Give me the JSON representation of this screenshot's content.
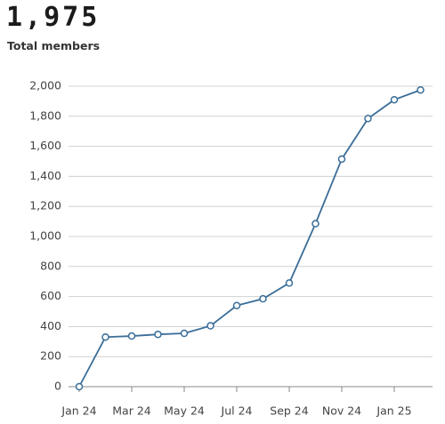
{
  "header": {
    "value": "1,975",
    "label": "Total members"
  },
  "chart_data": {
    "type": "line",
    "categories": [
      "Jan 24",
      null,
      "Mar 24",
      null,
      "May 24",
      null,
      "Jul 24",
      null,
      "Sep 24",
      null,
      "Nov 24",
      null,
      "Jan 25",
      null
    ],
    "series": [
      {
        "name": null,
        "color": "#3a6d98",
        "values": [
          0,
          330,
          337,
          348,
          355,
          405,
          540,
          585,
          690,
          1085,
          1515,
          1785,
          1910,
          1975
        ]
      }
    ],
    "ylim": [
      0,
      2000
    ],
    "yticks": [
      0,
      200,
      400,
      600,
      800,
      {
        "value": 1000,
        "label": "1,000"
      },
      {
        "value": 1200,
        "label": "1,200"
      },
      {
        "value": 1400,
        "label": "1,400"
      },
      {
        "value": 1600,
        "label": "1,600"
      },
      {
        "value": 1800,
        "label": "1,800"
      },
      {
        "value": 2000,
        "label": "2,000"
      }
    ],
    "grid": true
  }
}
